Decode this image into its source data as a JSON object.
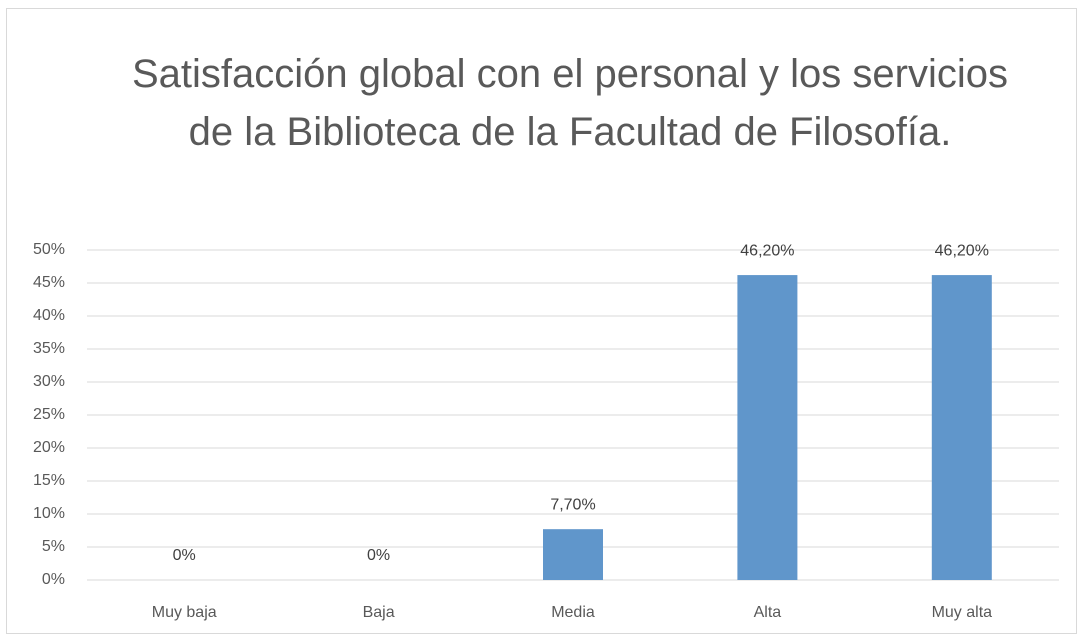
{
  "chart_data": {
    "type": "bar",
    "title": "Satisfacción global con el personal y los servicios de la Biblioteca de la Facultad de Filosofía.",
    "categories": [
      "Muy baja",
      "Baja",
      "Media",
      "Alta",
      "Muy alta"
    ],
    "values": [
      0,
      0,
      7.7,
      46.2,
      46.2
    ],
    "value_labels": [
      "0%",
      "0%",
      "7,70%",
      "46,20%",
      "46,20%"
    ],
    "color": "#6096cb",
    "ylim": [
      0,
      50
    ],
    "yticks": [
      {
        "value": 0,
        "label": "0%"
      },
      {
        "value": 5,
        "label": "5%"
      },
      {
        "value": 10,
        "label": "10%"
      },
      {
        "value": 15,
        "label": "15%"
      },
      {
        "value": 20,
        "label": "20%"
      },
      {
        "value": 25,
        "label": "25%"
      },
      {
        "value": 30,
        "label": "30%"
      },
      {
        "value": 35,
        "label": "35%"
      },
      {
        "value": 40,
        "label": "40%"
      },
      {
        "value": 45,
        "label": "45%"
      },
      {
        "value": 50,
        "label": "50%"
      }
    ],
    "grid": true
  }
}
